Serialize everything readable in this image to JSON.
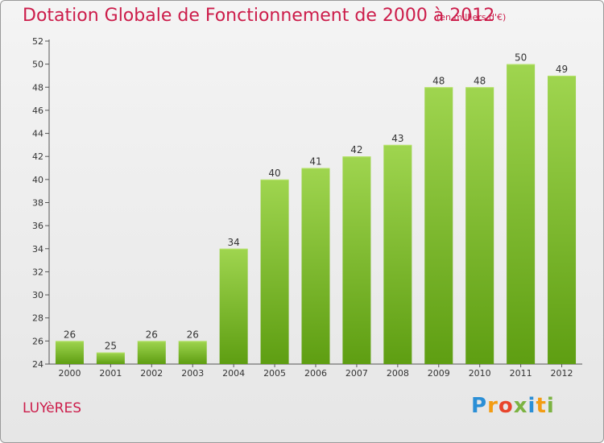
{
  "title": "Dotation Globale de Fonctionnement de 2000 à 2012",
  "subtitle": "(en milliers d'€)",
  "commune": "LUYèRES",
  "logo": {
    "letters": [
      "P",
      "r",
      "o",
      "x",
      "i",
      "t",
      "i"
    ],
    "colors": [
      "#2b8fd6",
      "#f39c12",
      "#e8452c",
      "#7cb342",
      "#2b8fd6",
      "#f39c12",
      "#7cb342"
    ]
  },
  "chart_data": {
    "type": "bar",
    "categories": [
      "2000",
      "2001",
      "2002",
      "2003",
      "2004",
      "2005",
      "2006",
      "2007",
      "2008",
      "2009",
      "2010",
      "2011",
      "2012"
    ],
    "values": [
      26,
      25,
      26,
      26,
      34,
      40,
      41,
      42,
      43,
      48,
      48,
      50,
      49
    ],
    "data_labels": [
      "26",
      "25",
      "26",
      "26",
      "34",
      "40",
      "41",
      "42",
      "43",
      "48",
      "48",
      "50",
      "49"
    ],
    "ylim": [
      24,
      52
    ],
    "yticks": [
      "24",
      "26",
      "28",
      "30",
      "32",
      "34",
      "36",
      "38",
      "40",
      "42",
      "44",
      "46",
      "48",
      "50",
      "52"
    ],
    "grid": false,
    "bar_color": "#7cc12c"
  }
}
